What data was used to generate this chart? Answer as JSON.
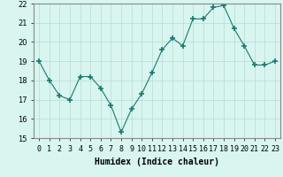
{
  "x": [
    0,
    1,
    2,
    3,
    4,
    5,
    6,
    7,
    8,
    9,
    10,
    11,
    12,
    13,
    14,
    15,
    16,
    17,
    18,
    19,
    20,
    21,
    22,
    23
  ],
  "y": [
    19.0,
    18.0,
    17.2,
    17.0,
    18.2,
    18.2,
    17.6,
    16.7,
    15.3,
    16.5,
    17.3,
    18.4,
    19.6,
    20.2,
    19.8,
    21.2,
    21.2,
    21.8,
    21.9,
    20.7,
    19.8,
    18.8,
    18.8,
    19.0
  ],
  "ylim": [
    15,
    22
  ],
  "yticks": [
    15,
    16,
    17,
    18,
    19,
    20,
    21,
    22
  ],
  "xlabel": "Humidex (Indice chaleur)",
  "line_color": "#1a7a6e",
  "marker": "+",
  "marker_size": 4,
  "bg_color": "#d8f5f0",
  "grid_color": "#b8dbd6",
  "label_fontsize": 7,
  "tick_fontsize": 6
}
